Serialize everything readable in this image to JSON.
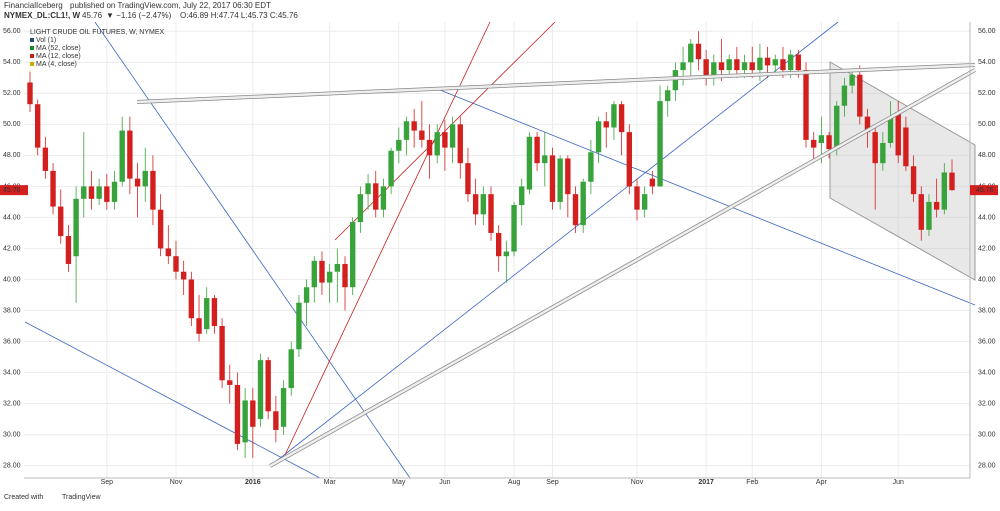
{
  "header": {
    "author": "FinancialIceberg",
    "published": "published on TradingView.com, July 22, 2017 06:30 EDT",
    "symbol": "NYMEX_DL:CL1!, W",
    "price": "45.76",
    "change": "▼ −1.16 (−2.47%)",
    "ohlc": "O:46.89 H:47.74 L:45.73 C:45.76"
  },
  "footer": {
    "created": "Created with",
    "brand": "TradingView"
  },
  "chart_data": {
    "type": "candlestick",
    "indicators": [
      "Vol (1)",
      "MA (52, close)",
      "MA (12, close)",
      "MA (4, close)"
    ],
    "categories": [
      null,
      null,
      null,
      null,
      null,
      null,
      null,
      null,
      null,
      null,
      "Sep",
      null,
      null,
      null,
      null,
      null,
      null,
      null,
      null,
      "Nov",
      null,
      null,
      null,
      null,
      null,
      null,
      null,
      null,
      null,
      "2016",
      null,
      null,
      null,
      null,
      null,
      null,
      null,
      null,
      null,
      "Mar",
      null,
      null,
      null,
      null,
      null,
      null,
      null,
      null,
      "May",
      null,
      null,
      null,
      null,
      null,
      "Jun",
      null,
      null,
      null,
      null,
      null,
      null,
      null,
      null,
      "Aug",
      null,
      null,
      null,
      null,
      "Sep",
      null,
      null,
      null,
      null,
      null,
      null,
      null,
      null,
      null,
      null,
      "Nov",
      null,
      null,
      null,
      null,
      null,
      null,
      null,
      null,
      "2017",
      null,
      null,
      null,
      null,
      null,
      "Feb",
      null,
      null,
      null,
      null,
      null,
      null,
      null,
      null,
      "Apr",
      null,
      null,
      null,
      null,
      null,
      null,
      null,
      null,
      null,
      "Jun",
      null,
      null,
      null,
      null,
      null,
      null,
      null
    ],
    "series": [
      {
        "name": "LIGHT CRUDE OIL FUTURES, W, NYMEX",
        "up_color": "#37a33a",
        "down_color": "#d3201f",
        "open": [
          52.7,
          51.3,
          48.5,
          47.0,
          44.7,
          42.8,
          41.5,
          45.2,
          46.0,
          45.2,
          46.0,
          45.0,
          46.3,
          49.6,
          46.5,
          46.0,
          47.0,
          44.5,
          42.0,
          41.5,
          40.5,
          40.0,
          37.5,
          36.8,
          38.8,
          37.0,
          33.5,
          33.2,
          29.5,
          32.2,
          31.0,
          34.8,
          31.5,
          30.5,
          33.0,
          35.5,
          38.5,
          39.5,
          41.2,
          39.8,
          40.5,
          41.0,
          39.5,
          43.7,
          45.5,
          46.2,
          44.5,
          46.0,
          48.3,
          49.0,
          50.2,
          49.6,
          49.0,
          48.0,
          49.5,
          48.5,
          50.0,
          47.5,
          45.5,
          44.2,
          45.5,
          43.0,
          41.5,
          41.8,
          44.8,
          45.8,
          49.2,
          47.5,
          48.0,
          45.0,
          47.8,
          45.5,
          43.5,
          46.3,
          48.2,
          50.2,
          49.8,
          51.3,
          49.5,
          46.0,
          44.5,
          46.5,
          46.0,
          51.5,
          52.2,
          53.5,
          54.0,
          55.2,
          54.2,
          53.0,
          54.0,
          53.5,
          54.2,
          53.5,
          54.0,
          53.5,
          54.3,
          53.8,
          54.2,
          53.5,
          54.5,
          53.5,
          49.0,
          48.8,
          49.3,
          48.4,
          51.2,
          52.5,
          53.2,
          50.5,
          49.5,
          47.5,
          48.8,
          50.8,
          49.8,
          47.3,
          45.5,
          43.2,
          45.0,
          44.5,
          46.89
        ],
        "high": [
          53.4,
          51.6,
          49.2,
          47.5,
          45.8,
          43.5,
          46.0,
          49.5,
          47.0,
          46.5,
          46.8,
          47.0,
          50.5,
          50.5,
          47.5,
          48.5,
          48.0,
          45.5,
          43.5,
          42.5,
          41.2,
          40.5,
          39.0,
          39.5,
          39.0,
          37.5,
          34.5,
          34.0,
          33.0,
          33.0,
          35.2,
          35.0,
          32.5,
          33.5,
          36.0,
          39.0,
          40.0,
          41.5,
          41.8,
          41.0,
          42.0,
          41.5,
          44.0,
          46.0,
          46.8,
          47.0,
          46.5,
          48.5,
          49.8,
          50.5,
          51.0,
          51.5,
          50.0,
          50.0,
          50.3,
          50.5,
          50.5,
          48.5,
          46.5,
          46.0,
          46.0,
          43.5,
          42.5,
          45.0,
          46.5,
          49.5,
          49.5,
          49.5,
          48.5,
          48.0,
          48.0,
          46.0,
          46.5,
          49.0,
          50.5,
          50.8,
          51.5,
          51.5,
          50.0,
          46.5,
          46.0,
          47.0,
          52.5,
          52.5,
          54.0,
          55.0,
          55.5,
          56.0,
          54.8,
          54.5,
          55.5,
          54.5,
          55.0,
          54.5,
          55.0,
          55.2,
          55.0,
          54.5,
          55.0,
          54.8,
          54.8,
          54.0,
          49.5,
          50.5,
          49.5,
          51.5,
          53.0,
          53.5,
          53.8,
          51.0,
          50.0,
          49.5,
          51.5,
          51.5,
          50.5,
          48.0,
          46.0,
          45.5,
          46.5,
          47.5,
          47.74
        ],
        "low": [
          50.8,
          48.0,
          46.5,
          44.2,
          42.3,
          40.5,
          38.5,
          44.0,
          44.5,
          44.8,
          44.5,
          44.5,
          46.0,
          45.5,
          44.0,
          45.0,
          43.5,
          41.5,
          41.0,
          40.0,
          39.0,
          37.0,
          36.0,
          36.5,
          36.5,
          33.0,
          32.0,
          29.0,
          28.5,
          28.5,
          30.5,
          31.0,
          29.5,
          30.0,
          32.5,
          35.0,
          37.0,
          38.5,
          39.0,
          38.5,
          38.5,
          38.0,
          39.0,
          43.0,
          44.5,
          44.0,
          44.0,
          45.5,
          47.5,
          48.0,
          48.5,
          48.5,
          46.5,
          47.5,
          47.0,
          47.5,
          46.5,
          45.0,
          43.5,
          43.5,
          42.5,
          40.5,
          39.8,
          41.5,
          43.5,
          45.5,
          47.0,
          46.0,
          44.5,
          44.5,
          44.0,
          43.0,
          43.0,
          45.5,
          47.5,
          48.5,
          49.0,
          48.0,
          45.5,
          43.8,
          44.0,
          45.5,
          46.0,
          50.5,
          51.5,
          52.5,
          53.0,
          53.5,
          52.5,
          52.5,
          52.8,
          53.0,
          53.0,
          53.0,
          53.0,
          52.8,
          53.0,
          53.2,
          53.0,
          53.0,
          53.0,
          48.5,
          47.5,
          47.5,
          47.8,
          48.0,
          50.5,
          52.0,
          50.0,
          48.5,
          44.5,
          47.0,
          48.5,
          47.5,
          47.0,
          45.0,
          42.5,
          42.8,
          44.0,
          44.2,
          45.73
        ],
        "close": [
          51.3,
          48.5,
          47.0,
          44.7,
          42.8,
          41.0,
          45.2,
          46.0,
          45.2,
          46.0,
          45.0,
          46.3,
          49.6,
          46.5,
          46.0,
          47.0,
          44.5,
          42.0,
          41.5,
          40.5,
          40.0,
          37.5,
          36.5,
          38.8,
          37.0,
          33.5,
          33.2,
          29.4,
          32.2,
          30.5,
          34.8,
          31.5,
          30.3,
          33.0,
          35.5,
          38.5,
          39.5,
          41.2,
          39.8,
          40.5,
          41.0,
          39.5,
          43.7,
          45.5,
          46.2,
          44.5,
          46.0,
          48.3,
          49.0,
          50.2,
          49.6,
          49.0,
          48.0,
          49.5,
          48.5,
          50.0,
          47.5,
          45.5,
          44.2,
          45.5,
          43.0,
          41.5,
          41.8,
          44.8,
          46.0,
          49.2,
          47.5,
          48.0,
          45.0,
          47.8,
          45.5,
          43.5,
          46.3,
          48.2,
          50.2,
          49.8,
          51.3,
          49.5,
          46.0,
          44.5,
          45.5,
          46.0,
          51.5,
          52.2,
          53.5,
          54.0,
          55.2,
          54.2,
          53.0,
          54.0,
          53.5,
          54.2,
          53.5,
          54.0,
          53.5,
          54.3,
          53.8,
          54.2,
          53.5,
          54.5,
          53.5,
          49.0,
          48.5,
          49.3,
          48.4,
          51.2,
          52.5,
          53.2,
          50.5,
          49.5,
          47.5,
          48.8,
          50.5,
          48.0,
          47.3,
          45.5,
          43.2,
          45.0,
          44.5,
          46.9,
          45.76
        ]
      }
    ],
    "ylim": [
      27.2,
      56.6
    ],
    "yticks": [
      {
        "value": 28,
        "label": "28.00"
      },
      {
        "value": 30,
        "label": "30.00"
      },
      {
        "value": 32,
        "label": "32.00"
      },
      {
        "value": 34,
        "label": "34.00"
      },
      {
        "value": 36,
        "label": "36.00"
      },
      {
        "value": 38,
        "label": "38.00"
      },
      {
        "value": 40,
        "label": "40.00"
      },
      {
        "value": 42,
        "label": "42.00"
      },
      {
        "value": 44,
        "label": "44.00"
      },
      {
        "value": 46,
        "label": "46.00"
      },
      {
        "value": 48,
        "label": "48.00"
      },
      {
        "value": 50,
        "label": "50.00"
      },
      {
        "value": 52,
        "label": "52.00"
      },
      {
        "value": 54,
        "label": "54.00"
      },
      {
        "value": 56,
        "label": "56.00"
      }
    ],
    "grid": true
  }
}
